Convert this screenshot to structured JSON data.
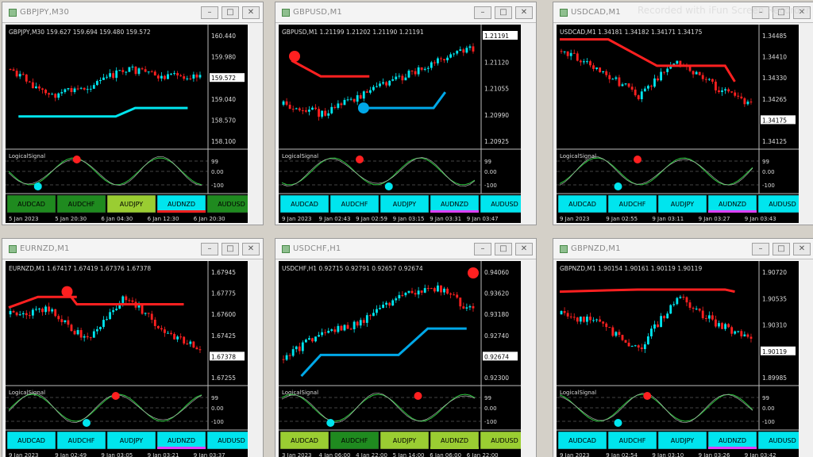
{
  "watermark": "Recorded with iFun Screen Recorder",
  "windows": [
    {
      "title": "GBPJPY,M30",
      "header": "GBPJPY,M30  159.627 159.694 159.480 159.572",
      "prices": [
        "160.440",
        "159.980",
        "159.572",
        "159.040",
        "158.570",
        "158.100"
      ],
      "current_price": "159.572",
      "indicator_label": "LogicalSignal",
      "indicator_ticks": [
        "99",
        "0.00",
        "-100"
      ],
      "buttons": [
        "AUDCAD",
        "AUDCHF",
        "AUDJPY",
        "AUDNZD",
        "AUDUSD"
      ],
      "button_colors": [
        "#1f8a1f",
        "#1f8a1f",
        "#9acd32",
        "#00e5ee",
        "#1f8a1f"
      ],
      "times": [
        "5 Jan 2023",
        "5 Jan 20:30",
        "6 Jan 04:30",
        "6 Jan 12:30",
        "6 Jan 20:30"
      ],
      "trend_color": "#00e5ee",
      "dot_top_color": "#ff2020",
      "dot_bottom_color": "#00e5ee"
    },
    {
      "title": "GBPUSD,M1",
      "header": "GBPUSD,M1  1.21199 1.21202 1.21190 1.21191",
      "prices": [
        "1.21191",
        "1.21120",
        "1.21055",
        "1.20990",
        "1.20925"
      ],
      "current_price": "1.21191",
      "indicator_label": "LogicalSignal",
      "indicator_ticks": [
        "99",
        "0.00",
        "-100"
      ],
      "buttons": [
        "AUDCAD",
        "AUDCHF",
        "AUDJPY",
        "AUDNZD",
        "AUDUSD"
      ],
      "button_colors": [
        "#00e5ee",
        "#00e5ee",
        "#00e5ee",
        "#00e5ee",
        "#00e5ee"
      ],
      "times": [
        "9 Jan 2023",
        "9 Jan 02:43",
        "9 Jan 02:59",
        "9 Jan 03:15",
        "9 Jan 03:31",
        "9 Jan 03:47"
      ],
      "trend_color": "#ff2020",
      "dot_top_color": "#ff2020",
      "dot_bottom_color": "#00e5ee"
    },
    {
      "title": "USDCAD,M1",
      "header": "USDCAD,M1  1.34181 1.34182 1.34171 1.34175",
      "prices": [
        "1.34485",
        "1.34410",
        "1.34330",
        "1.34265",
        "1.34175",
        "1.34125"
      ],
      "current_price": "1.34175",
      "indicator_label": "LogicalSignal",
      "indicator_ticks": [
        "99",
        "0.00",
        "-100"
      ],
      "buttons": [
        "AUDCAD",
        "AUDCHF",
        "AUDJPY",
        "AUDNZD",
        "AUDUSD"
      ],
      "button_colors": [
        "#00e5ee",
        "#00e5ee",
        "#00e5ee",
        "#00e5ee",
        "#00e5ee"
      ],
      "times": [
        "9 Jan 2023",
        "9 Jan 02:55",
        "9 Jan 03:11",
        "9 Jan 03:27",
        "9 Jan 03:43"
      ],
      "trend_color": "#ff2020",
      "dot_top_color": "#ff2020",
      "dot_bottom_color": "#00e5ee"
    },
    {
      "title": "EURNZD,M1",
      "header": "EURNZD,M1  1.67417 1.67419 1.67376 1.67378",
      "prices": [
        "1.67945",
        "1.67775",
        "1.67600",
        "1.67425",
        "1.67378",
        "1.67255"
      ],
      "current_price": "1.67378",
      "indicator_label": "LogicalSignal",
      "indicator_ticks": [
        "99",
        "0.00",
        "-100"
      ],
      "buttons": [
        "AUDCAD",
        "AUDCHF",
        "AUDJPY",
        "AUDNZD",
        "AUDUSD"
      ],
      "button_colors": [
        "#00e5ee",
        "#00e5ee",
        "#00e5ee",
        "#00e5ee",
        "#00e5ee"
      ],
      "times": [
        "9 Jan 2023",
        "9 Jan 02:49",
        "9 Jan 03:05",
        "9 Jan 03:21",
        "9 Jan 03:37"
      ],
      "trend_color": "#ff2020",
      "dot_top_color": "#ff2020",
      "dot_bottom_color": "#00e5ee"
    },
    {
      "title": "USDCHF,H1",
      "header": "USDCHF,H1  0.92715 0.92791 0.92657 0.92674",
      "prices": [
        "0.94060",
        "0.93620",
        "0.93180",
        "0.92740",
        "0.92674",
        "0.92300"
      ],
      "current_price": "0.92674",
      "indicator_label": "LogicalSignal",
      "indicator_ticks": [
        "99",
        "0.00",
        "-100"
      ],
      "buttons": [
        "AUDCAD",
        "AUDCHF",
        "AUDJPY",
        "AUDNZD",
        "AUDUSD"
      ],
      "button_colors": [
        "#9acd32",
        "#1f8a1f",
        "#9acd32",
        "#9acd32",
        "#9acd32"
      ],
      "times": [
        "3 Jan 2023",
        "4 Jan 06:00",
        "4 Jan 22:00",
        "5 Jan 14:00",
        "6 Jan 06:00",
        "6 Jan 22:00"
      ],
      "trend_color": "#00a8e8",
      "dot_top_color": "#ff2020",
      "dot_bottom_color": "#00e5ee"
    },
    {
      "title": "GBPNZD,M1",
      "header": "GBPNZD,M1  1.90154 1.90161 1.90119 1.90119",
      "prices": [
        "1.90720",
        "1.90535",
        "1.90310",
        "1.90119",
        "1.89985"
      ],
      "current_price": "1.90119",
      "indicator_label": "LogicalSignal",
      "indicator_ticks": [
        "99",
        "0.00",
        "-100"
      ],
      "buttons": [
        "AUDCAD",
        "AUDCHF",
        "AUDJPY",
        "AUDNZD",
        "AUDUSD"
      ],
      "button_colors": [
        "#00e5ee",
        "#00e5ee",
        "#00e5ee",
        "#00e5ee",
        "#00e5ee"
      ],
      "times": [
        "9 Jan 2023",
        "9 Jan 02:54",
        "9 Jan 03:10",
        "9 Jan 03:26",
        "9 Jan 03:42"
      ],
      "trend_color": "#ff2020",
      "dot_top_color": "#ff2020",
      "dot_bottom_color": "#00e5ee"
    }
  ]
}
